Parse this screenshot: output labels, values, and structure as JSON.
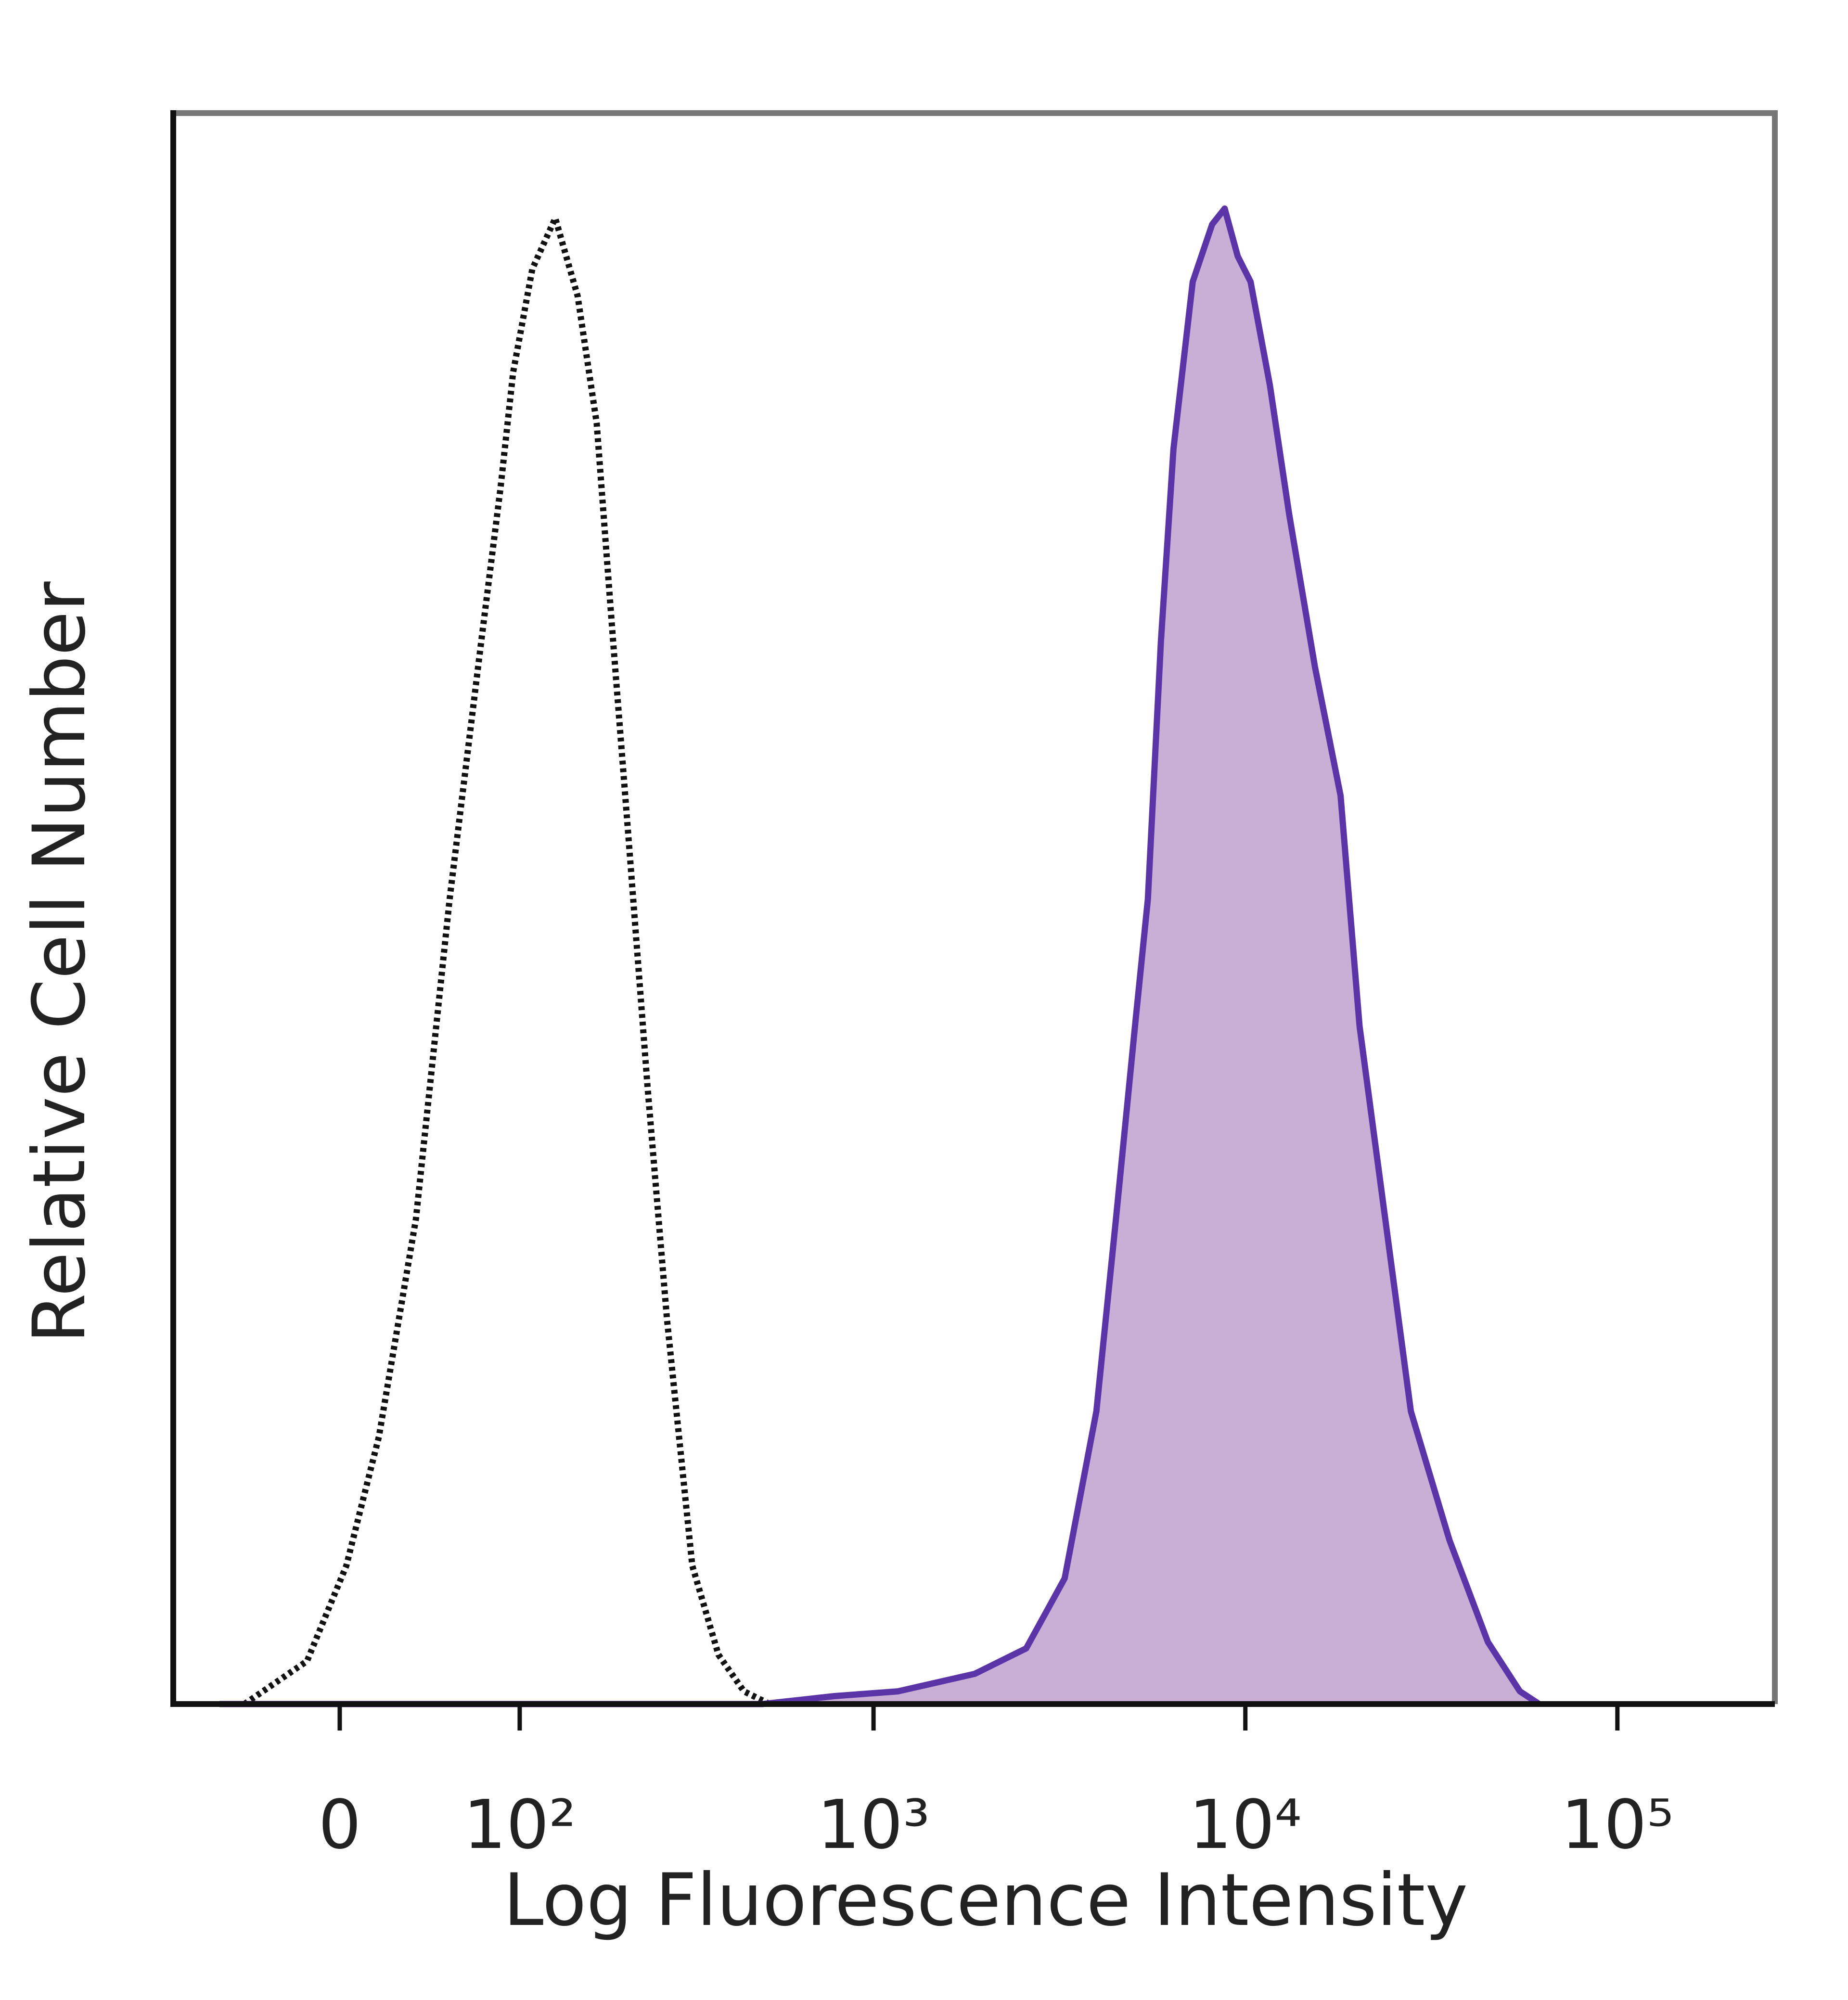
{
  "chart_data": {
    "type": "histogram-overlay",
    "xlabel": "Log Fluorescence Intensity",
    "ylabel": "Relative Cell Number",
    "xscale": "biexponential",
    "xlim": [
      -90,
      265000
    ],
    "xticks": [
      0,
      {
        "value": 100,
        "label": "10²"
      },
      {
        "value": 1000,
        "label": "10³"
      },
      {
        "value": 10000,
        "label": "10⁴"
      },
      {
        "value": 100000,
        "label": "10⁵"
      }
    ],
    "ylim": [
      0,
      100
    ],
    "series": [
      {
        "color": "#111111",
        "style": "dotted",
        "filled": false,
        "x": [
          -46,
          -15,
          3,
          18,
          36,
          54,
          73,
          86,
          95,
          110,
          130,
          152,
          173,
          193,
          213,
          242,
          274,
          322,
          380,
          446,
          524
        ],
        "values": [
          0,
          2.7,
          8.7,
          16.8,
          30.5,
          50.6,
          66.8,
          76.5,
          83.7,
          90.2,
          93.4,
          88.5,
          80.5,
          66.8,
          54.8,
          38.7,
          24.2,
          8.7,
          3.1,
          0.8,
          0
        ]
      },
      {
        "color": "#5b35a8",
        "fill": "#c9afd6",
        "style": "solid",
        "filled": true,
        "x": [
          -60,
          500,
          784,
          1164,
          1873,
          2576,
          3268,
          3977,
          4490,
          5050,
          5470,
          5930,
          6410,
          7220,
          8140,
          8800,
          9540,
          10330,
          11640,
          13110,
          15380,
          18030,
          20280,
          23770,
          27860,
          35370,
          44860,
          54690,
          61640
        ],
        "values": [
          0,
          0,
          0.5,
          0.8,
          1.9,
          3.5,
          7.9,
          18.4,
          30.5,
          42.6,
          50.6,
          66.8,
          78.9,
          89.4,
          93,
          94,
          91,
          89.4,
          82.9,
          74.8,
          65.2,
          57.1,
          42.6,
          30.5,
          18.4,
          10.3,
          3.9,
          0.8,
          0
        ]
      }
    ]
  }
}
